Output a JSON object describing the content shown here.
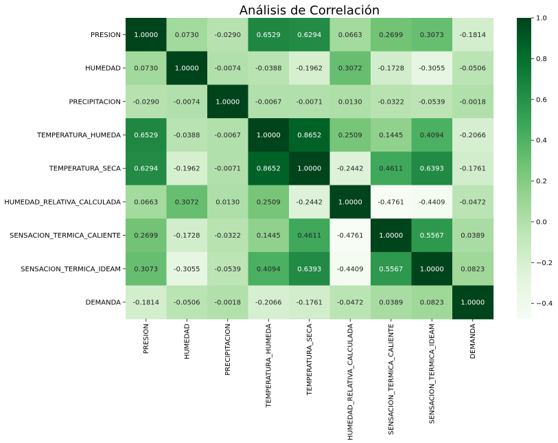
{
  "chart_data": {
    "type": "heatmap",
    "title": "Análisis de Correlación",
    "colormap": "Greens",
    "rows": [
      "PRESION",
      "HUMEDAD",
      "PRECIPITACION",
      "TEMPERATURA_HUMEDA",
      "TEMPERATURA_SECA",
      "HUMEDAD_RELATIVA_CALCULADA",
      "SENSACION_TERMICA_CALIENTE",
      "SENSACION_TERMICA_IDEAM",
      "DEMANDA"
    ],
    "columns": [
      "PRESION",
      "HUMEDAD",
      "PRECIPITACION",
      "TEMPERATURA_HUMEDA",
      "TEMPERATURA_SECA",
      "HUMEDAD_RELATIVA_CALCULADA",
      "SENSACION_TERMICA_CALIENTE",
      "SENSACION_TERMICA_IDEAM",
      "DEMANDA"
    ],
    "values": [
      [
        1.0,
        0.073,
        -0.029,
        0.6529,
        0.6294,
        0.0663,
        0.2699,
        0.3073,
        -0.1814
      ],
      [
        0.073,
        1.0,
        -0.0074,
        -0.0388,
        -0.1962,
        0.3072,
        -0.1728,
        -0.3055,
        -0.0506
      ],
      [
        -0.029,
        -0.0074,
        1.0,
        -0.0067,
        -0.0071,
        0.013,
        -0.0322,
        -0.0539,
        -0.0018
      ],
      [
        0.6529,
        -0.0388,
        -0.0067,
        1.0,
        0.8652,
        0.2509,
        0.1445,
        0.4094,
        -0.2066
      ],
      [
        0.6294,
        -0.1962,
        -0.0071,
        0.8652,
        1.0,
        -0.2442,
        0.4611,
        0.6393,
        -0.1761
      ],
      [
        0.0663,
        0.3072,
        0.013,
        0.2509,
        -0.2442,
        1.0,
        -0.4761,
        -0.4409,
        -0.0472
      ],
      [
        0.2699,
        -0.1728,
        -0.0322,
        0.1445,
        0.4611,
        -0.4761,
        1.0,
        0.5567,
        0.0389
      ],
      [
        0.3073,
        -0.3055,
        -0.0539,
        0.4094,
        0.6393,
        -0.4409,
        0.5567,
        1.0,
        0.0823
      ],
      [
        -0.1814,
        -0.0506,
        -0.0018,
        -0.2066,
        -0.1761,
        -0.0472,
        0.0389,
        0.0823,
        1.0
      ]
    ],
    "value_format": "4 decimals",
    "colorbar": {
      "range": [
        -0.4761,
        1.0
      ],
      "ticks": [
        "−0.4",
        "−0.2",
        "0.0",
        "0.2",
        "0.4",
        "0.6",
        "0.8",
        "1.0"
      ],
      "tick_values": [
        -0.4,
        -0.2,
        0.0,
        0.2,
        0.4,
        0.6,
        0.8,
        1.0
      ]
    }
  }
}
